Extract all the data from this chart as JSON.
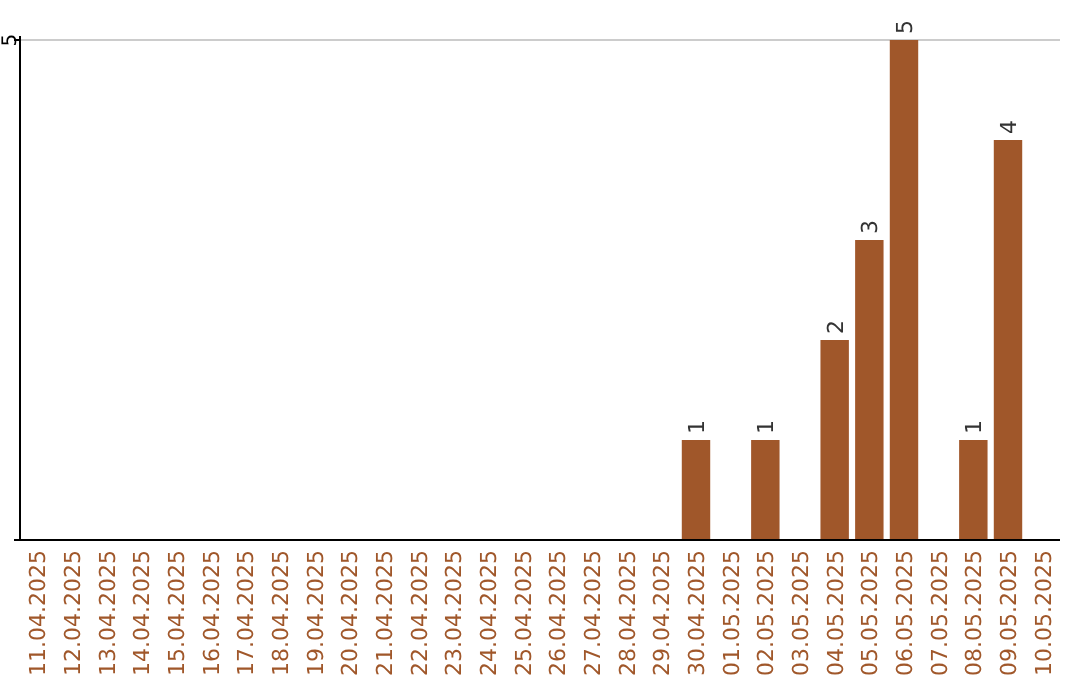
{
  "chart_data": {
    "type": "bar",
    "ylim": [
      0,
      5
    ],
    "categories": [
      "11.04.2025",
      "12.04.2025",
      "13.04.2025",
      "14.04.2025",
      "15.04.2025",
      "16.04.2025",
      "17.04.2025",
      "18.04.2025",
      "19.04.2025",
      "20.04.2025",
      "21.04.2025",
      "22.04.2025",
      "23.04.2025",
      "24.04.2025",
      "25.04.2025",
      "26.04.2025",
      "27.04.2025",
      "28.04.2025",
      "29.04.2025",
      "30.04.2025",
      "01.05.2025",
      "02.05.2025",
      "03.05.2025",
      "04.05.2025",
      "05.05.2025",
      "06.05.2025",
      "07.05.2025",
      "08.05.2025",
      "09.05.2025",
      "10.05.2025"
    ],
    "values": [
      null,
      null,
      null,
      null,
      null,
      null,
      null,
      null,
      null,
      null,
      null,
      null,
      null,
      null,
      null,
      null,
      null,
      null,
      null,
      1,
      null,
      1,
      null,
      2,
      3,
      5,
      null,
      1,
      4,
      null
    ],
    "value_labels": [
      null,
      null,
      null,
      null,
      null,
      null,
      null,
      null,
      null,
      null,
      null,
      null,
      null,
      null,
      null,
      null,
      null,
      null,
      null,
      "1",
      null,
      "1",
      null,
      "2",
      "3",
      "5",
      null,
      "1",
      "4",
      null
    ],
    "color": "#a0572a",
    "yticks": [
      {
        "value": 0,
        "label": null
      },
      5
    ],
    "ref_lines": [
      {
        "axis": "y",
        "value": 5,
        "color": "#cccccc"
      }
    ]
  }
}
